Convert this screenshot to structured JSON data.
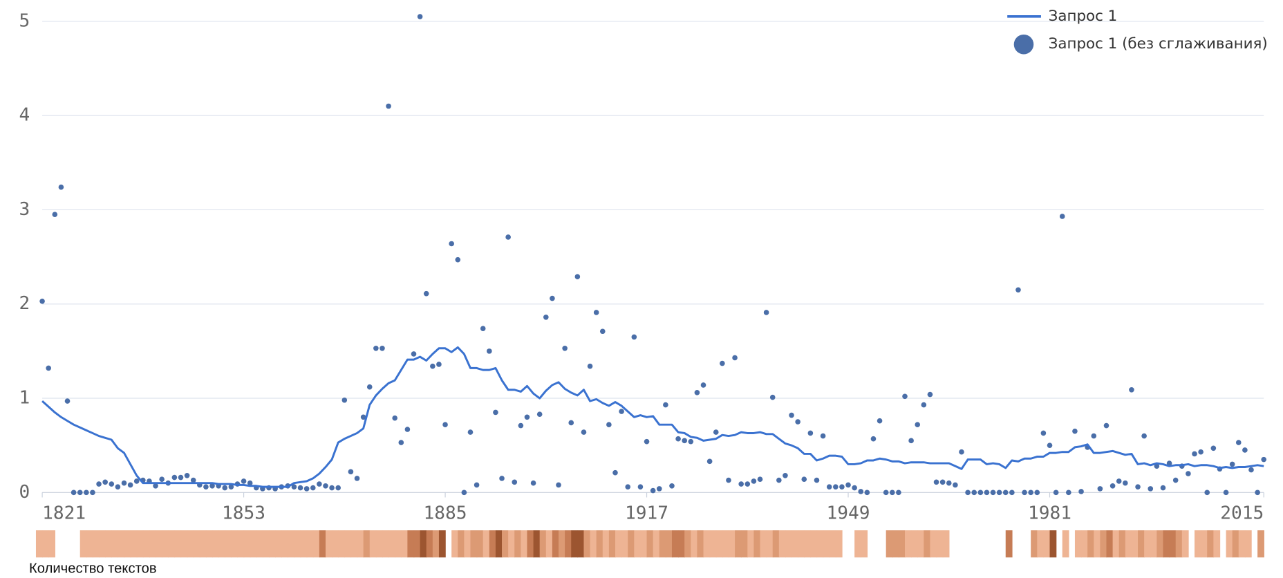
{
  "chart_data": [
    {
      "type": "line",
      "xlim": [
        1821,
        2015
      ],
      "ylim": [
        0,
        5.2
      ],
      "xticks": [
        1821,
        1853,
        1885,
        1917,
        1949,
        1981,
        2015
      ],
      "yticks": [
        0,
        1,
        2,
        3,
        4,
        5
      ],
      "grid": true,
      "legend": "top-right",
      "x": [
        1821,
        1822,
        1823,
        1824,
        1825,
        1826,
        1827,
        1828,
        1829,
        1830,
        1831,
        1832,
        1833,
        1834,
        1835,
        1836,
        1837,
        1838,
        1839,
        1840,
        1841,
        1842,
        1843,
        1844,
        1845,
        1846,
        1847,
        1848,
        1849,
        1850,
        1851,
        1852,
        1853,
        1854,
        1855,
        1856,
        1857,
        1858,
        1859,
        1860,
        1861,
        1862,
        1863,
        1864,
        1865,
        1866,
        1867,
        1868,
        1869,
        1870,
        1871,
        1872,
        1873,
        1874,
        1875,
        1876,
        1877,
        1878,
        1879,
        1880,
        1881,
        1882,
        1883,
        1884,
        1885,
        1886,
        1887,
        1888,
        1889,
        1890,
        1891,
        1892,
        1893,
        1894,
        1895,
        1896,
        1897,
        1898,
        1899,
        1900,
        1901,
        1902,
        1903,
        1904,
        1905,
        1906,
        1907,
        1908,
        1909,
        1910,
        1911,
        1912,
        1913,
        1914,
        1915,
        1916,
        1917,
        1918,
        1919,
        1920,
        1921,
        1922,
        1923,
        1924,
        1925,
        1926,
        1927,
        1928,
        1929,
        1930,
        1931,
        1932,
        1933,
        1934,
        1935,
        1936,
        1937,
        1938,
        1939,
        1940,
        1941,
        1942,
        1943,
        1944,
        1945,
        1946,
        1947,
        1948,
        1949,
        1950,
        1951,
        1952,
        1953,
        1954,
        1955,
        1956,
        1957,
        1958,
        1959,
        1960,
        1961,
        1962,
        1963,
        1964,
        1965,
        1966,
        1967,
        1968,
        1969,
        1970,
        1971,
        1972,
        1973,
        1974,
        1975,
        1976,
        1977,
        1978,
        1979,
        1980,
        1981,
        1982,
        1983,
        1984,
        1985,
        1986,
        1987,
        1988,
        1989,
        1990,
        1991,
        1992,
        1993,
        1994,
        1995,
        1996,
        1997,
        1998,
        1999,
        2000,
        2001,
        2002,
        2003,
        2004,
        2005,
        2006,
        2007,
        2008,
        2009,
        2010,
        2011,
        2012,
        2013,
        2014,
        2015
      ],
      "series": [
        {
          "name": "Запрос 1",
          "type": "line",
          "color": "#3a72d0",
          "values": [
            0.97,
            0.91,
            0.85,
            0.8,
            0.76,
            0.72,
            0.69,
            0.66,
            0.63,
            0.6,
            0.58,
            0.56,
            0.47,
            0.42,
            0.3,
            0.18,
            0.1,
            0.1,
            0.1,
            0.1,
            0.1,
            0.1,
            0.1,
            0.1,
            0.1,
            0.1,
            0.1,
            0.1,
            0.09,
            0.09,
            0.09,
            0.08,
            0.08,
            0.07,
            0.07,
            0.06,
            0.06,
            0.06,
            0.06,
            0.06,
            0.1,
            0.11,
            0.12,
            0.15,
            0.2,
            0.27,
            0.35,
            0.53,
            0.57,
            0.6,
            0.63,
            0.68,
            0.93,
            1.03,
            1.1,
            1.16,
            1.19,
            1.3,
            1.41,
            1.41,
            1.44,
            1.4,
            1.47,
            1.53,
            1.53,
            1.49,
            1.54,
            1.47,
            1.32,
            1.32,
            1.3,
            1.3,
            1.32,
            1.19,
            1.09,
            1.09,
            1.07,
            1.13,
            1.05,
            1.0,
            1.08,
            1.14,
            1.17,
            1.1,
            1.06,
            1.03,
            1.09,
            0.97,
            0.99,
            0.95,
            0.92,
            0.96,
            0.92,
            0.86,
            0.8,
            0.82,
            0.8,
            0.81,
            0.72,
            0.72,
            0.72,
            0.64,
            0.63,
            0.59,
            0.58,
            0.55,
            0.56,
            0.57,
            0.61,
            0.6,
            0.61,
            0.64,
            0.63,
            0.63,
            0.64,
            0.62,
            0.62,
            0.57,
            0.52,
            0.5,
            0.47,
            0.41,
            0.41,
            0.34,
            0.36,
            0.39,
            0.39,
            0.38,
            0.3,
            0.3,
            0.31,
            0.34,
            0.34,
            0.36,
            0.35,
            0.33,
            0.33,
            0.31,
            0.32,
            0.32,
            0.32,
            0.31,
            0.31,
            0.31,
            0.31,
            0.28,
            0.25,
            0.35,
            0.35,
            0.35,
            0.3,
            0.31,
            0.3,
            0.26,
            0.34,
            0.33,
            0.36,
            0.36,
            0.38,
            0.38,
            0.42,
            0.42,
            0.43,
            0.43,
            0.48,
            0.49,
            0.51,
            0.42,
            0.42,
            0.43,
            0.44,
            0.42,
            0.4,
            0.41,
            0.3,
            0.31,
            0.29,
            0.31,
            0.3,
            0.28,
            0.29,
            0.29,
            0.3,
            0.28,
            0.29,
            0.29,
            0.28,
            0.26,
            0.27,
            0.26,
            0.27,
            0.27,
            0.28,
            0.29,
            0.28
          ]
        },
        {
          "name": "Запрос 1 (без сглаживания)",
          "type": "scatter",
          "color": "#4a6ea8",
          "values": [
            2.03,
            1.32,
            2.95,
            3.24,
            0.97,
            0,
            0,
            0,
            0,
            0.09,
            0.11,
            0.09,
            0.06,
            0.1,
            0.08,
            0.12,
            0.13,
            0.12,
            0.07,
            0.14,
            0.1,
            0.16,
            0.16,
            0.18,
            0.13,
            0.08,
            0.06,
            0.07,
            0.07,
            0.05,
            0.06,
            0.09,
            0.12,
            0.1,
            0.05,
            0.04,
            0.05,
            0.04,
            0.06,
            0.07,
            0.06,
            0.05,
            0.04,
            0.05,
            0.09,
            0.07,
            0.05,
            0.05,
            0.98,
            0.22,
            0.15,
            0.8,
            1.12,
            1.53,
            1.53,
            4.1,
            0.79,
            0.53,
            0.67,
            1.47,
            5.05,
            2.11,
            1.34,
            1.36,
            0.72,
            2.64,
            2.47,
            0,
            0.64,
            0.08,
            1.74,
            1.5,
            0.85,
            0.15,
            2.71,
            0.11,
            0.71,
            0.8,
            0.1,
            0.83,
            1.86,
            2.06,
            0.08,
            1.53,
            0.74,
            2.29,
            0.64,
            1.34,
            1.91,
            1.71,
            0.72,
            0.21,
            0.86,
            0.06,
            1.65,
            0.06,
            0.54,
            0.02,
            0.04,
            0.93,
            0.07,
            0.57,
            0.55,
            0.54,
            1.06,
            1.14,
            0.33,
            0.64,
            1.37,
            0.13,
            1.43,
            0.09,
            0.09,
            0.12,
            0.14,
            1.91,
            1.01,
            0.13,
            0.18,
            0.82,
            0.75,
            0.14,
            0.63,
            0.13,
            0.6,
            0.06,
            0.06,
            0.06,
            0.08,
            0.05,
            0.01,
            0,
            0.57,
            0.76,
            0,
            0,
            0,
            1.02,
            0.55,
            0.72,
            0.93,
            1.04,
            0.11,
            0.11,
            0.1,
            0.08,
            0.43,
            0,
            0,
            0,
            0,
            0,
            0,
            0,
            0,
            2.15,
            0,
            0,
            0,
            0.63,
            0.5,
            0,
            2.93,
            0,
            0.65,
            0.01,
            0.48,
            0.6,
            0.04,
            0.71,
            0.07,
            0.12,
            0.1,
            1.09,
            0.06,
            0.6,
            0.04,
            0.28,
            0.05,
            0.31,
            0.13,
            0.28,
            0.2,
            0.41,
            0.43,
            0,
            0.47,
            0.25,
            0,
            0.3,
            0.53,
            0.45,
            0.24,
            0,
            0.35
          ]
        }
      ]
    },
    {
      "type": "heatmap",
      "title": "Количество текстов",
      "xlim": [
        1821,
        2015
      ],
      "colors": [
        "#eeb494",
        "#dc9a74",
        "#c67c55",
        "#9c5530"
      ],
      "x": [
        1821,
        1822,
        1823,
        1824,
        1825,
        1826,
        1827,
        1828,
        1829,
        1830,
        1831,
        1832,
        1833,
        1834,
        1835,
        1836,
        1837,
        1838,
        1839,
        1840,
        1841,
        1842,
        1843,
        1844,
        1845,
        1846,
        1847,
        1848,
        1849,
        1850,
        1851,
        1852,
        1853,
        1854,
        1855,
        1856,
        1857,
        1858,
        1859,
        1860,
        1861,
        1862,
        1863,
        1864,
        1865,
        1866,
        1867,
        1868,
        1869,
        1870,
        1871,
        1872,
        1873,
        1874,
        1875,
        1876,
        1877,
        1878,
        1879,
        1880,
        1881,
        1882,
        1883,
        1884,
        1885,
        1886,
        1887,
        1888,
        1889,
        1890,
        1891,
        1892,
        1893,
        1894,
        1895,
        1896,
        1897,
        1898,
        1899,
        1900,
        1901,
        1902,
        1903,
        1904,
        1905,
        1906,
        1907,
        1908,
        1909,
        1910,
        1911,
        1912,
        1913,
        1914,
        1915,
        1916,
        1917,
        1918,
        1919,
        1920,
        1921,
        1922,
        1923,
        1924,
        1925,
        1926,
        1927,
        1928,
        1929,
        1930,
        1931,
        1932,
        1933,
        1934,
        1935,
        1936,
        1937,
        1938,
        1939,
        1940,
        1941,
        1942,
        1943,
        1944,
        1945,
        1946,
        1947,
        1948,
        1949,
        1950,
        1951,
        1952,
        1953,
        1954,
        1955,
        1956,
        1957,
        1958,
        1959,
        1960,
        1961,
        1962,
        1963,
        1964,
        1965,
        1966,
        1967,
        1968,
        1969,
        1970,
        1971,
        1972,
        1973,
        1974,
        1975,
        1976,
        1977,
        1978,
        1979,
        1980,
        1981,
        1982,
        1983,
        1984,
        1985,
        1986,
        1987,
        1988,
        1989,
        1990,
        1991,
        1992,
        1993,
        1994,
        1995,
        1996,
        1997,
        1998,
        1999,
        2000,
        2001,
        2002,
        2003,
        2004,
        2005,
        2006,
        2007,
        2008,
        2009,
        2010,
        2011,
        2012,
        2013,
        2014,
        2015
      ],
      "values": [
        1,
        1,
        1,
        null,
        null,
        null,
        null,
        1,
        1,
        1,
        1,
        1,
        1,
        1,
        1,
        1,
        1,
        1,
        1,
        1,
        1,
        1,
        1,
        1,
        1,
        1,
        1,
        1,
        1,
        1,
        1,
        1,
        1,
        1,
        1,
        1,
        1,
        1,
        1,
        1,
        1,
        1,
        1,
        1,
        1,
        3,
        1,
        1,
        1,
        1,
        1,
        1,
        2,
        1,
        1,
        1,
        1,
        1,
        1,
        3,
        3,
        4,
        3,
        2,
        4,
        null,
        1,
        2,
        1,
        2,
        2,
        1,
        3,
        4,
        2,
        1,
        2,
        1,
        3,
        4,
        2,
        1,
        3,
        2,
        3,
        4,
        4,
        2,
        1,
        2,
        1,
        2,
        1,
        1,
        2,
        1,
        1,
        2,
        1,
        2,
        2,
        3,
        3,
        2,
        1,
        2,
        1,
        1,
        1,
        1,
        1,
        2,
        2,
        1,
        2,
        1,
        1,
        2,
        1,
        1,
        1,
        1,
        1,
        1,
        1,
        1,
        1,
        1,
        null,
        null,
        1,
        1,
        null,
        null,
        null,
        2,
        2,
        2,
        1,
        1,
        1,
        2,
        1,
        1,
        1,
        null,
        null,
        null,
        null,
        null,
        null,
        null,
        null,
        null,
        3,
        null,
        null,
        null,
        2,
        1,
        1,
        4,
        null,
        1,
        null,
        1,
        1,
        2,
        1,
        2,
        3,
        1,
        2,
        1,
        1,
        2,
        1,
        1,
        2,
        3,
        3,
        2,
        1,
        null,
        1,
        1,
        2,
        1,
        null,
        1,
        2,
        1,
        1,
        null,
        2
      ]
    }
  ]
}
